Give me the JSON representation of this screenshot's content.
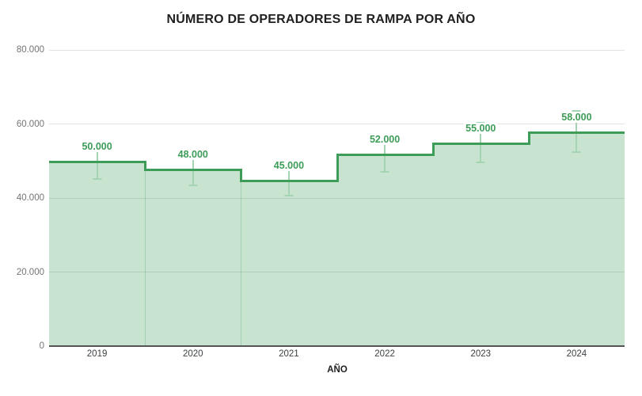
{
  "chart_data": {
    "type": "area",
    "subtype": "stepped-area",
    "title": "NÚMERO DE OPERADORES DE RAMPA POR AÑO",
    "xlabel": "AÑO",
    "ylabel": "",
    "categories": [
      "2019",
      "2020",
      "2021",
      "2022",
      "2023",
      "2024"
    ],
    "values": [
      50000,
      48000,
      45000,
      52000,
      55000,
      58000
    ],
    "value_labels": [
      "50.000",
      "48.000",
      "45.000",
      "52.000",
      "55.000",
      "58.000"
    ],
    "error_bars": {
      "type": "percent",
      "plus": 10,
      "minus": 10
    },
    "ylim": [
      0,
      80000
    ],
    "yticks": {
      "values": [
        0,
        20000,
        40000,
        60000,
        80000
      ],
      "labels": [
        "0",
        "20.000",
        "40.000",
        "60.000",
        "80.000"
      ]
    },
    "grid": true,
    "legend": "none",
    "colors": {
      "line": "#3d9c58",
      "fill": "rgba(61,156,88,0.28)",
      "error_bar": "#a4d4b2",
      "value_label": "#3d9c58",
      "gridline": "#e2e2e2",
      "axis_line": "#545454",
      "ytick_text": "#757575",
      "xtick_text": "#3c4043",
      "title_text": "#1f1f1f"
    }
  }
}
